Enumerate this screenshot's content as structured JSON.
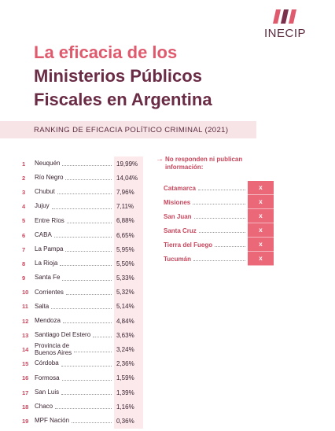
{
  "logo": {
    "text": "INECIP"
  },
  "header": {
    "title_line1": "La eficacia de los",
    "title_line2": "Ministerios Públicos",
    "title_line3": "Fiscales en Argentina",
    "subtitle": "RANKING DE EFICACIA POLÍTICO CRIMINAL (2021)"
  },
  "ranking": {
    "rows": [
      [
        "1",
        "Neuquén",
        "19,99%"
      ],
      [
        "2",
        "Río Negro",
        "14,04%"
      ],
      [
        "3",
        "Chubut",
        "7,96%"
      ],
      [
        "4",
        "Jujuy",
        "7,11%"
      ],
      [
        "5",
        "Entre Ríos",
        "6,88%"
      ],
      [
        "6",
        "CABA",
        "6,65%"
      ],
      [
        "7",
        "La Pampa",
        "5,95%"
      ],
      [
        "8",
        "La Rioja",
        "5,50%"
      ],
      [
        "9",
        "Santa Fe",
        "5,33%"
      ],
      [
        "10",
        "Corrientes",
        "5,32%"
      ],
      [
        "11",
        "Salta",
        "5,14%"
      ],
      [
        "12",
        "Mendoza",
        "4,84%"
      ],
      [
        "13",
        "Santiago Del Estero",
        "3,63%"
      ],
      [
        "14",
        "Provincia de\nBuenos Aires",
        "3,24%"
      ],
      [
        "15",
        "Córdoba",
        "2,36%"
      ],
      [
        "16",
        "Formosa",
        "1,59%"
      ],
      [
        "17",
        "San Luis",
        "1,39%"
      ],
      [
        "18",
        "Chaco",
        "1,16%"
      ],
      [
        "19",
        "MPF Nación",
        "0,36%"
      ]
    ]
  },
  "no_response": {
    "heading": "No responden ni publican información:",
    "rows": [
      [
        "Catamarca",
        "x"
      ],
      [
        "Misiones",
        "x"
      ],
      [
        "San Juan",
        "x"
      ],
      [
        "Santa Cruz",
        "x"
      ],
      [
        "Tierra del Fuego",
        "x"
      ],
      [
        "Tucumán",
        "x"
      ]
    ]
  }
}
